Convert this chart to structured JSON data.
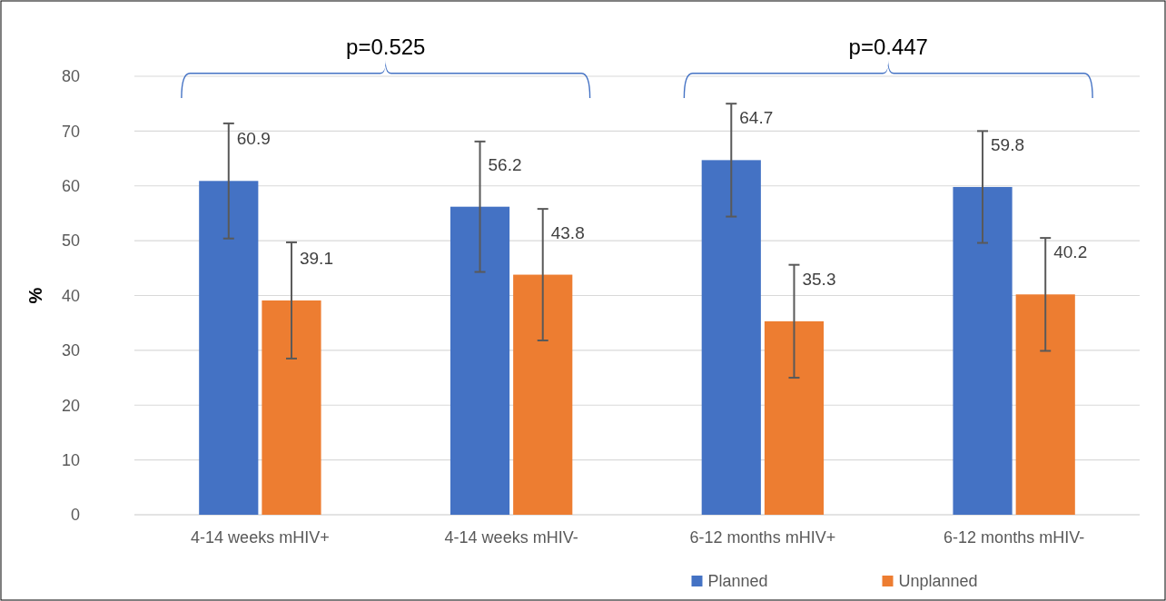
{
  "chart_data": {
    "type": "bar",
    "ylabel": "%",
    "categories": [
      "4-14 weeks mHIV+",
      "4-14 weeks mHIV-",
      "6-12 months mHIV+",
      "6-12 months mHIV-"
    ],
    "series": [
      {
        "name": "Planned",
        "color": "#4472c4",
        "values": [
          60.9,
          56.2,
          64.7,
          59.8
        ],
        "errors": [
          10.5,
          11.9,
          10.3,
          10.2
        ]
      },
      {
        "name": "Unplanned",
        "color": "#ed7d31",
        "values": [
          39.1,
          43.8,
          35.3,
          40.2
        ],
        "errors": [
          10.6,
          12.0,
          10.3,
          10.3
        ]
      }
    ],
    "ylim": [
      0,
      80
    ],
    "yticks": [
      0,
      10,
      20,
      30,
      40,
      50,
      60,
      70,
      80
    ],
    "grid": "y",
    "legend": "bottom",
    "data_labels": true,
    "annotations": [
      "p=0.525",
      "p=0.447"
    ]
  }
}
